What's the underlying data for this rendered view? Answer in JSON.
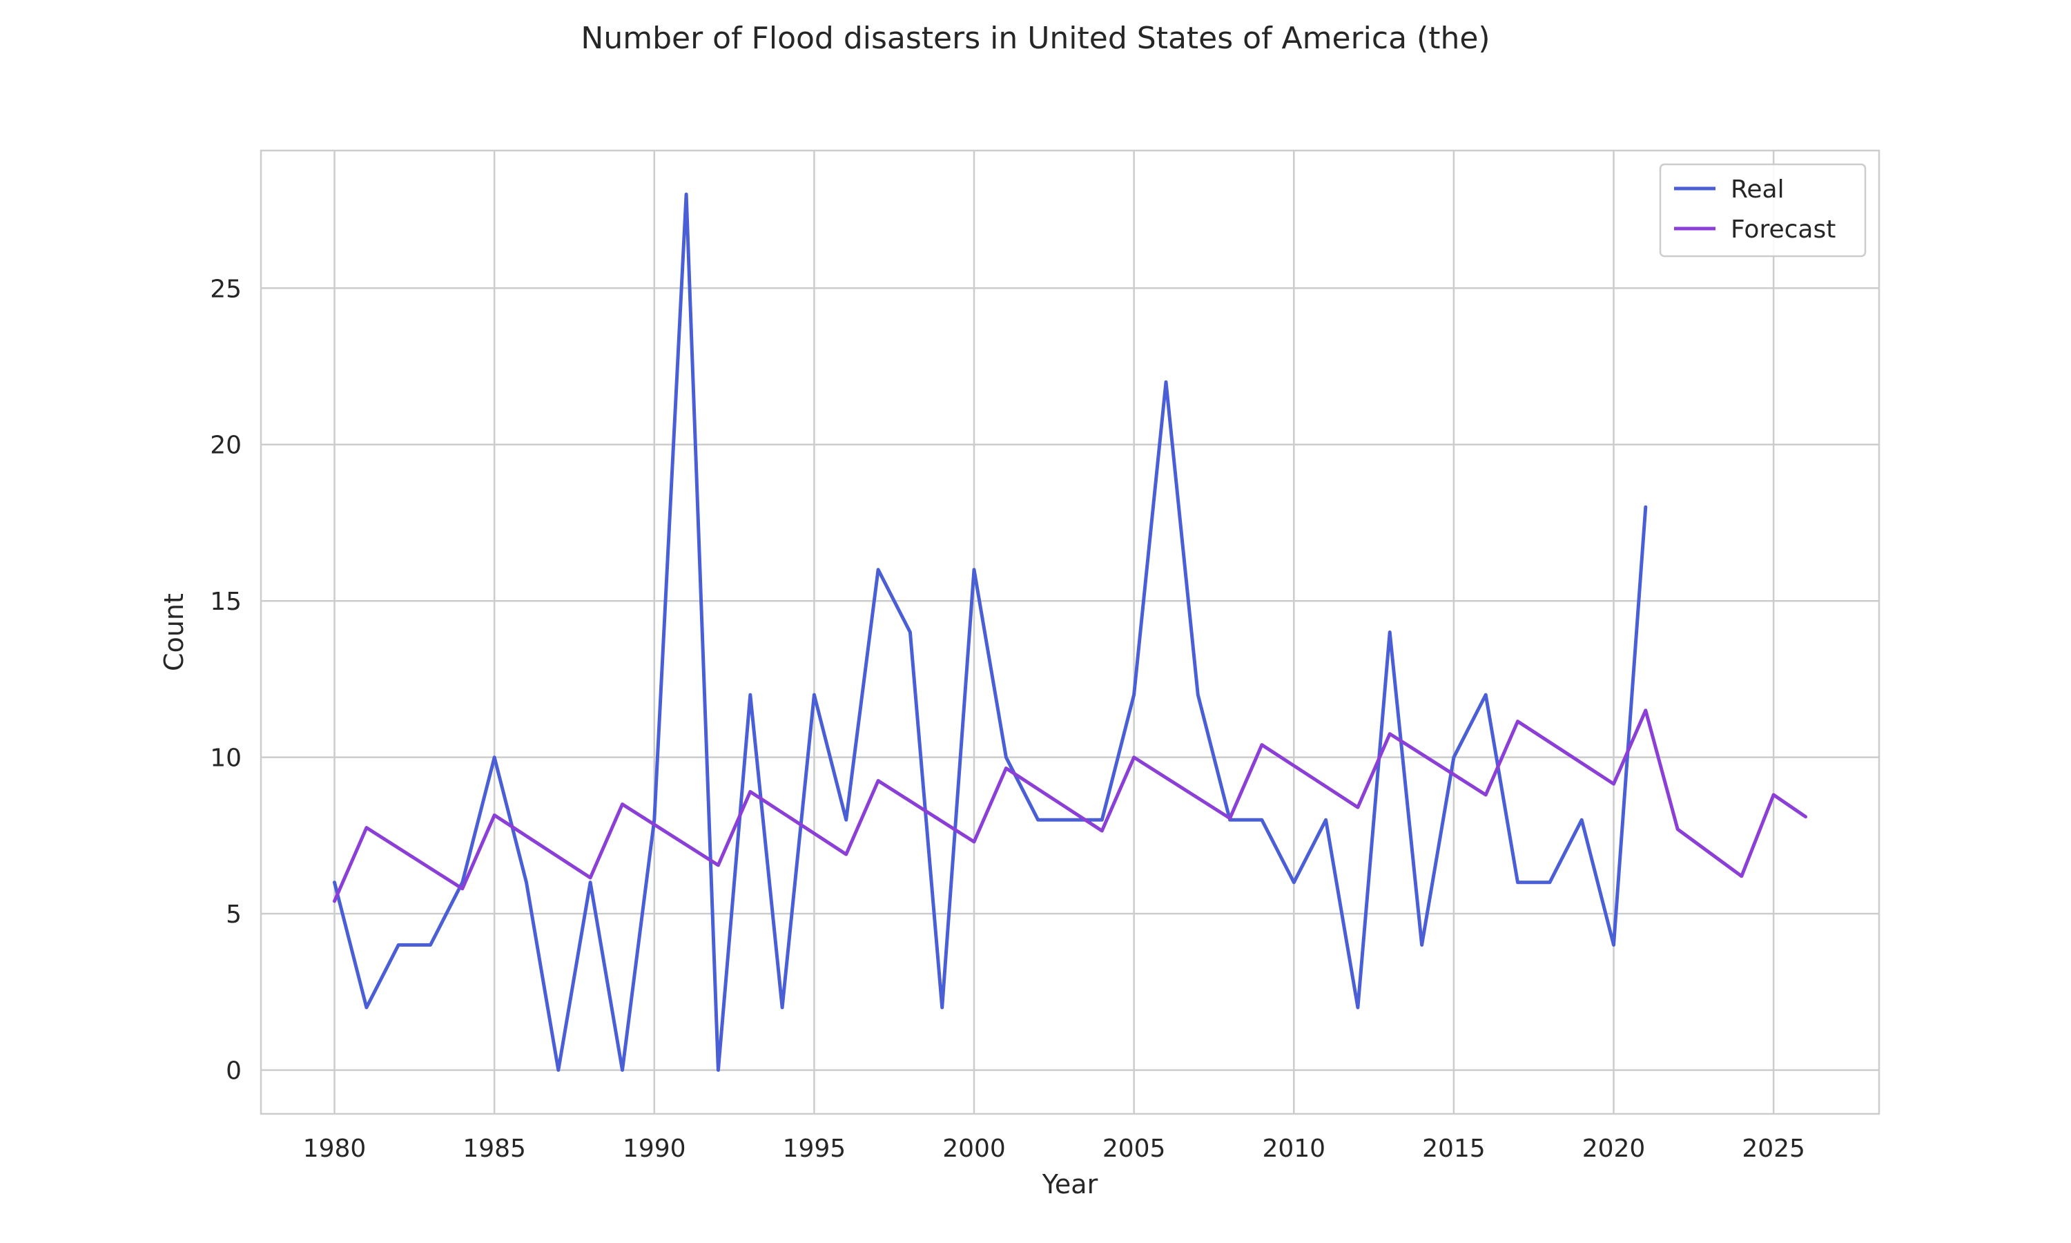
{
  "chart_data": {
    "type": "line",
    "title": "Number of Flood disasters in United States of America (the)",
    "xlabel": "Year",
    "ylabel": "Count",
    "xlim": [
      1977.7,
      2028.3
    ],
    "ylim": [
      -1.4,
      29.4
    ],
    "xticks": [
      1980,
      1985,
      1990,
      1995,
      2000,
      2005,
      2010,
      2015,
      2020,
      2025
    ],
    "yticks": [
      0,
      5,
      10,
      15,
      20,
      25
    ],
    "grid": true,
    "legend_position": "top-right",
    "series": [
      {
        "name": "Real",
        "color": "#4a5fd6",
        "x": [
          1980,
          1981,
          1982,
          1983,
          1984,
          1985,
          1986,
          1987,
          1988,
          1989,
          1990,
          1991,
          1992,
          1993,
          1994,
          1995,
          1996,
          1997,
          1998,
          1999,
          2000,
          2001,
          2002,
          2003,
          2004,
          2005,
          2006,
          2007,
          2008,
          2009,
          2010,
          2011,
          2012,
          2013,
          2014,
          2015,
          2016,
          2017,
          2018,
          2019,
          2020,
          2021
        ],
        "y": [
          6,
          2,
          4,
          4,
          6,
          10,
          6,
          0,
          6,
          0,
          8,
          28,
          0,
          12,
          2,
          12,
          8,
          16,
          14,
          2,
          16,
          10,
          8,
          8,
          8,
          12,
          22,
          12,
          8,
          8,
          6,
          8,
          2,
          14,
          4,
          10,
          12,
          6,
          6,
          8,
          4,
          18
        ]
      },
      {
        "name": "Forecast",
        "color": "#8b3fd6",
        "x": [
          1980,
          1981,
          1984,
          1985,
          1988,
          1989,
          1992,
          1993,
          1996,
          1997,
          2000,
          2001,
          2004,
          2005,
          2008,
          2009,
          2012,
          2013,
          2016,
          2017,
          2020,
          2021,
          2022,
          2024,
          2025,
          2026
        ],
        "y": [
          5.4,
          7.75,
          5.8,
          8.15,
          6.15,
          8.5,
          6.55,
          8.9,
          6.9,
          9.25,
          7.3,
          9.65,
          7.65,
          10.0,
          8.05,
          10.4,
          8.4,
          10.75,
          8.8,
          11.15,
          9.15,
          11.5,
          7.7,
          6.2,
          8.8,
          8.1
        ]
      }
    ]
  }
}
